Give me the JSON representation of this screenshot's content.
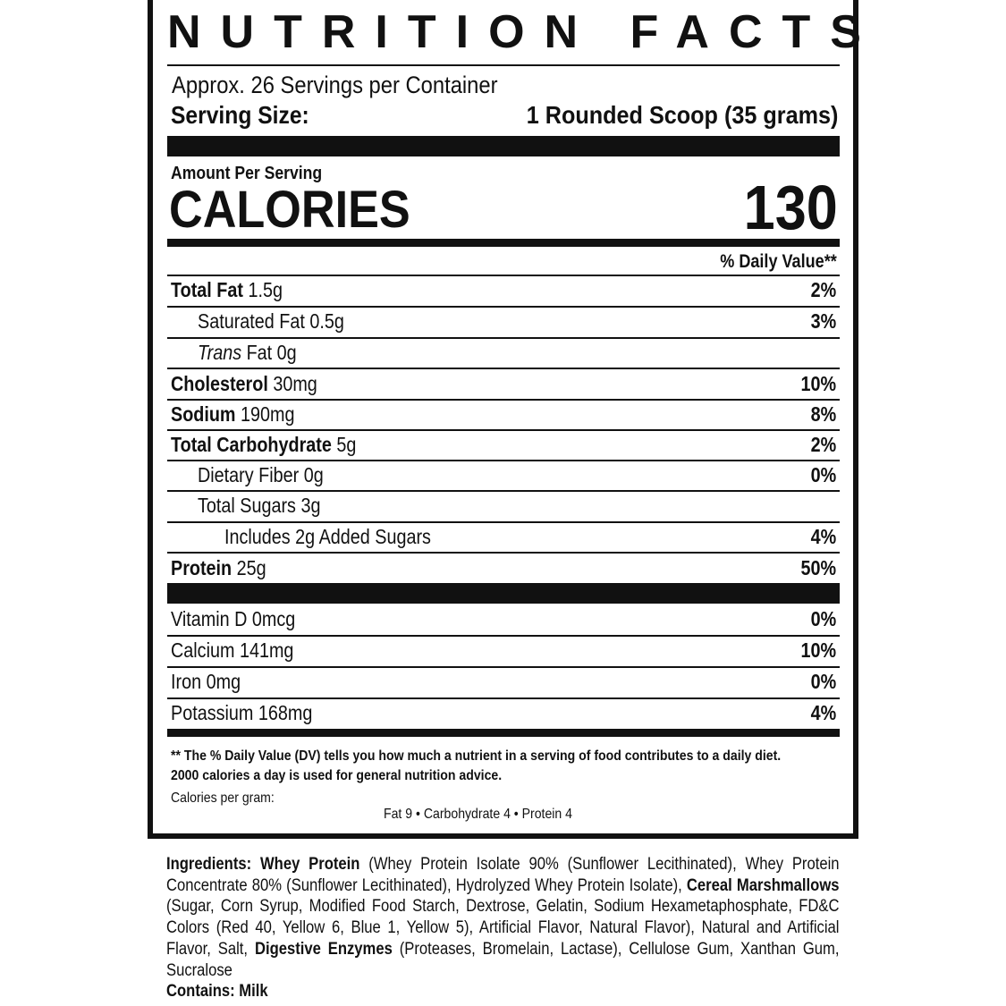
{
  "title": "NUTRITION FACTS",
  "servings_per_container": "Approx. 26 Servings per Container",
  "serving_size": {
    "label": "Serving Size:",
    "value": "1 Rounded Scoop (35 grams)"
  },
  "amount_per_serving": "Amount Per Serving",
  "calories": {
    "label": "CALORIES",
    "value": "130"
  },
  "daily_value_header": "% Daily Value**",
  "nutrients": [
    {
      "name": "Total Fat",
      "amount": "1.5g",
      "dv": "2%"
    },
    {
      "name": "Saturated Fat",
      "amount": "0.5g",
      "dv": "3%"
    },
    {
      "name_italic": "Trans",
      "name": "Fat",
      "amount": "0g",
      "dv": ""
    },
    {
      "name": "Cholesterol",
      "amount": "30mg",
      "dv": "10%"
    },
    {
      "name": "Sodium",
      "amount": "190mg",
      "dv": "8%"
    },
    {
      "name": "Total Carbohydrate",
      "amount": "5g",
      "dv": "2%"
    },
    {
      "name": "Dietary Fiber",
      "amount": "0g",
      "dv": "0%"
    },
    {
      "name": "Total Sugars",
      "amount": "3g",
      "dv": ""
    },
    {
      "name": "Includes 2g Added Sugars",
      "amount": "",
      "dv": "4%"
    },
    {
      "name": "Protein",
      "amount": "25g",
      "dv": "50%"
    }
  ],
  "vitamins": [
    {
      "name": "Vitamin D",
      "amount": "0mcg",
      "dv": "0%"
    },
    {
      "name": "Calcium",
      "amount": "141mg",
      "dv": "10%"
    },
    {
      "name": "Iron",
      "amount": "0mg",
      "dv": "0%"
    },
    {
      "name": "Potassium",
      "amount": "168mg",
      "dv": "4%"
    }
  ],
  "footnote": {
    "line1": "** The % Daily Value (DV) tells you how much a nutrient in a serving of food contributes to a daily diet.",
    "line2": "2000 calories a day is used for general nutrition advice.",
    "calories_per_gram_label": "Calories per gram:",
    "calories_per_gram": "Fat 9 • Carbohydrate 4 • Protein 4"
  },
  "ingredients": {
    "label": "Ingredients:",
    "seg1_bold": "Whey Protein",
    "seg1": "(Whey Protein Isolate 90% (Sunflower Lecithinated), Whey Protein Concentrate 80% (Sunflower Lecithinated), Hydrolyzed Whey Protein Isolate),",
    "seg2_bold": "Cereal Marshmallows",
    "seg2": "(Sugar, Corn Syrup, Modified Food Starch, Dextrose, Gelatin, Sodium Hexametaphosphate, FD&C Colors (Red 40, Yellow 6, Blue 1, Yellow 5), Artificial Flavor, Natural Flavor), Natural and Artificial Flavor, Salt,",
    "seg3_bold": "Digestive Enzymes",
    "seg3": "(Proteases, Bromelain, Lactase), Cellulose Gum, Xanthan Gum, Sucralose",
    "contains": "Contains: Milk"
  }
}
